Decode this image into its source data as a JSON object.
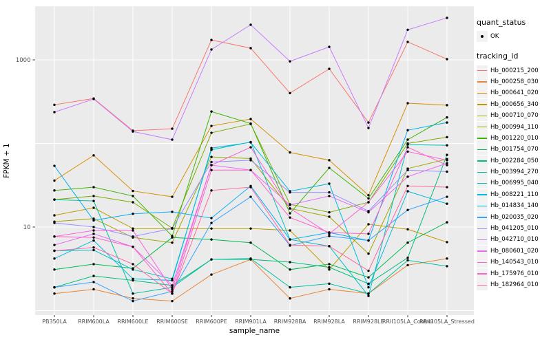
{
  "chart_data": {
    "type": "line",
    "title": "",
    "xlabel": "sample_name",
    "ylabel": "FPKM + 1",
    "x_categories": [
      "PB350LA",
      "RRIM600LA",
      "RRIM600LE",
      "RRIM600SE",
      "RRIM600PE",
      "RRIM901LA",
      "RRIM928BA",
      "RRIM928LA",
      "RRIM928LE",
      "RRII105LA_Control",
      "RRII105LA_Stressed"
    ],
    "y_scale": "log10",
    "y_tick_labels": [
      "10",
      "1000"
    ],
    "y_tick_values": [
      10,
      1000
    ],
    "y_gridline_values": [
      1,
      10,
      100,
      1000
    ],
    "ylim": [
      0.88,
      4400
    ],
    "grid": true,
    "legend_position": "right",
    "panel_bg": "#EBEBEB",
    "gridline_color": "#FFFFFF",
    "point_color": "#000000",
    "axis_text_color": "#4D4D4D",
    "legends": [
      {
        "title": "quant_status",
        "type": "point",
        "items": [
          {
            "label": "OK",
            "color": "#000000"
          }
        ]
      },
      {
        "title": "tracking_id",
        "type": "line",
        "items": [
          {
            "label": "Hb_000215_200",
            "color": "#F8766D"
          },
          {
            "label": "Hb_000258_030",
            "color": "#EA8331"
          },
          {
            "label": "Hb_000641_020",
            "color": "#D89000"
          },
          {
            "label": "Hb_000656_340",
            "color": "#C09B00"
          },
          {
            "label": "Hb_000710_070",
            "color": "#A3A500"
          },
          {
            "label": "Hb_000994_110",
            "color": "#7CAE00"
          },
          {
            "label": "Hb_001220_010",
            "color": "#39B600"
          },
          {
            "label": "Hb_001754_070",
            "color": "#00BB4E"
          },
          {
            "label": "Hb_002284_050",
            "color": "#00BF7D"
          },
          {
            "label": "Hb_003994_270",
            "color": "#00C1A3"
          },
          {
            "label": "Hb_006995_040",
            "color": "#00BFC4"
          },
          {
            "label": "Hb_008221_110",
            "color": "#00BAE0"
          },
          {
            "label": "Hb_014834_140",
            "color": "#00B0F6"
          },
          {
            "label": "Hb_020035_020",
            "color": "#35A2FF"
          },
          {
            "label": "Hb_041205_010",
            "color": "#9590FF"
          },
          {
            "label": "Hb_042710_010",
            "color": "#C77CFF"
          },
          {
            "label": "Hb_080601_020",
            "color": "#E76BF3"
          },
          {
            "label": "Hb_140543_010",
            "color": "#FA62DB"
          },
          {
            "label": "Hb_175976_010",
            "color": "#FF61C9"
          },
          {
            "label": "Hb_182964_010",
            "color": "#FF67A4"
          }
        ]
      }
    ],
    "series": [
      {
        "name": "Hb_000215_200",
        "color": "#F8766D",
        "values": [
          290,
          345,
          142,
          150,
          1730,
          1380,
          400,
          780,
          178,
          1640,
          1020
        ]
      },
      {
        "name": "Hb_000258_030",
        "color": "#EA8331",
        "values": [
          1.6,
          1.8,
          1.4,
          1.3,
          2.7,
          4.1,
          1.4,
          1.8,
          1.6,
          3.5,
          4.2
        ]
      },
      {
        "name": "Hb_000641_020",
        "color": "#D89000",
        "values": [
          36,
          72,
          27,
          23,
          162,
          196,
          78,
          63,
          24,
          303,
          287
        ]
      },
      {
        "name": "Hb_000656_340",
        "color": "#C09B00",
        "values": [
          13.8,
          17,
          9.6,
          9.6,
          9.6,
          9.6,
          9.1,
          3.1,
          10.8,
          9.4,
          6.6
        ]
      },
      {
        "name": "Hb_000710_070",
        "color": "#A3A500",
        "values": [
          11.6,
          12.6,
          7.5,
          6.5,
          69,
          66,
          16.7,
          13.3,
          4.8,
          50,
          65
        ]
      },
      {
        "name": "Hb_000994_110",
        "color": "#7CAE00",
        "values": [
          21.3,
          23.5,
          19.8,
          9.7,
          134,
          171,
          18.7,
          15,
          19.8,
          100,
          119
        ]
      },
      {
        "name": "Hb_001220_010",
        "color": "#39B600",
        "values": [
          27.4,
          30,
          23.5,
          7.8,
          241,
          173,
          14.6,
          51,
          22,
          111,
          205
        ]
      },
      {
        "name": "Hb_001754_070",
        "color": "#00BB4E",
        "values": [
          3.1,
          3.6,
          3.2,
          7.5,
          7.1,
          6.5,
          3.1,
          3.6,
          2.5,
          6.5,
          11.4
        ]
      },
      {
        "name": "Hb_002284_050",
        "color": "#00BF7D",
        "values": [
          1.9,
          2.6,
          2.3,
          2.0,
          4.1,
          4.1,
          3.8,
          3.3,
          2.1,
          4.3,
          73
        ]
      },
      {
        "name": "Hb_003994_270",
        "color": "#00C1A3",
        "values": [
          21.3,
          20.5,
          1.6,
          1.9,
          4.1,
          4.2,
          1.9,
          2.1,
          1.6,
          4.0,
          3.4
        ]
      },
      {
        "name": "Hb_006995_040",
        "color": "#00BFC4",
        "values": [
          5.2,
          5.3,
          3.1,
          2.4,
          84,
          104,
          7.1,
          5.9,
          1.5,
          97,
          95
        ]
      },
      {
        "name": "Hb_008221_110",
        "color": "#00BAE0",
        "values": [
          4.2,
          6.9,
          2.4,
          2.3,
          88,
          103,
          26.8,
          33,
          1.9,
          26.8,
          19
        ]
      },
      {
        "name": "Hb_014834_140",
        "color": "#00B0F6",
        "values": [
          54,
          12,
          14.4,
          15.2,
          12.8,
          31,
          7.1,
          8.6,
          6.9,
          144,
          178
        ]
      },
      {
        "name": "Hb_020035_020",
        "color": "#35A2FF",
        "values": [
          1.9,
          2.2,
          1.3,
          1.7,
          11.2,
          23,
          6.0,
          7.8,
          6.9,
          16,
          23
        ]
      },
      {
        "name": "Hb_041205_010",
        "color": "#9590FF",
        "values": [
          11.2,
          10,
          7.7,
          9.6,
          60,
          63,
          26,
          26,
          15.5,
          48,
          46
        ]
      },
      {
        "name": "Hb_042710_010",
        "color": "#C77CFF",
        "values": [
          237,
          340,
          139,
          111,
          1330,
          2630,
          960,
          1430,
          153,
          2290,
          3180
        ]
      },
      {
        "name": "Hb_080601_020",
        "color": "#E76BF3",
        "values": [
          6.1,
          8.3,
          5.8,
          2.0,
          55,
          48,
          18.4,
          23.5,
          15,
          40,
          58
        ]
      },
      {
        "name": "Hb_140543_010",
        "color": "#FA62DB",
        "values": [
          7.7,
          9.1,
          9.1,
          1.8,
          55,
          90,
          16.7,
          8.3,
          19.8,
          80,
          63
        ]
      },
      {
        "name": "Hb_175976_010",
        "color": "#FF61C9",
        "values": [
          7.7,
          7.5,
          5.8,
          1.6,
          48,
          48,
          13,
          8.6,
          8.3,
          90,
          55
        ]
      },
      {
        "name": "Hb_182964_010",
        "color": "#FF67A4",
        "values": [
          5.2,
          5.7,
          3.6,
          1.6,
          27.4,
          30,
          6.1,
          5.9,
          3.0,
          31,
          30
        ]
      }
    ]
  }
}
